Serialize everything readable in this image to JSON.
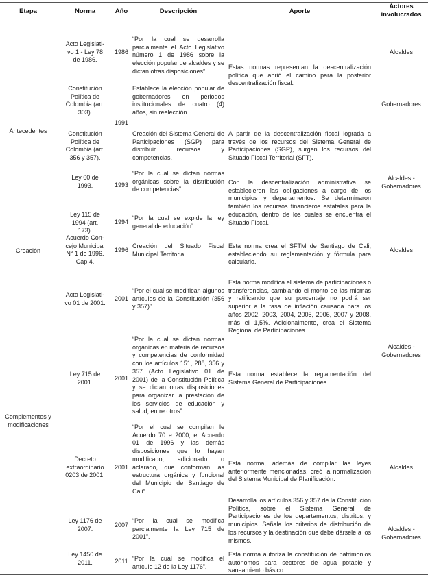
{
  "headers": [
    "Etapa",
    "Norma",
    "Año",
    "Descripción",
    "Aporte",
    "Actores\ninvolucrados"
  ],
  "etapas": [
    "Antecedentes",
    "Creación",
    "Complementos y\nmodificaciones"
  ],
  "normas": [
    {
      "norma": "Acto Legislati-\nvo 1 - Ley 78\nde 1986.",
      "descripcion": "“Por la cual se desarrolla parcialmente el Acto Legislativo número 1 de 1986 sobre la elección popular de alcaldes y se dictan otras disposiciones”."
    },
    {
      "norma": "Constitución\nPolítica de\nColombia (art.\n303).",
      "descripcion": "Establece la elección popular de gobernadores en periodos institucionales de cuatro (4) años, sin reelección."
    },
    {
      "norma": "Constitución\nPolítica de\nColombia (art.\n356 y 357).",
      "descripcion": "Creación del Sistema General de Participaciones (SGP) para distribuir recursos y competencias."
    },
    {
      "norma": "Ley 60 de\n1993.",
      "descripcion": "“Por la cual se dictan normas orgánicas sobre la distribución de competencias”."
    },
    {
      "norma": "Ley 115 de\n1994 (art.\n173).",
      "descripcion": "“Por la cual se expide la ley general de educación”."
    },
    {
      "norma": "Acuerdo Con-\ncejo Municipal\nN° 1 de 1996.\nCap 4.",
      "descripcion": "Creación del Situado Fiscal Municipal Territorial."
    },
    {
      "norma": "Acto Legislati-\nvo 01 de 2001.",
      "descripcion": "“Por el cual se modifican algunos artículos de la Constitución (356 y 357)”."
    },
    {
      "norma": "Ley 715 de\n2001.",
      "descripcion": "“Por la cual se dictan normas orgánicas en materia de recursos y competencias de conformidad con los artículos 151, 288, 356 y 357 (Acto Legislativo 01 de 2001) de la Constitución Política y se dictan otras disposiciones para organizar la prestación de los servicios de educación y salud, entre otros”."
    },
    {
      "norma": "Decreto\nextraordinario\n0203 de 2001.",
      "descripcion": "“Por el cual se compilan le Acuerdo 70 e 2000, el Acuerdo 01 de 1996 y las demás disposiciones que lo hayan modificado, adicionado o aclarado, que conforman las estructura orgánica y funcional del Municipio de Santiago de Cali”."
    },
    {
      "norma": "Ley 1176 de\n2007.",
      "descripcion": "“Por la cual se modifica parcialmente la Ley 715 de 2001”."
    },
    {
      "norma": "Ley 1450 de\n2011.",
      "descripcion": "“Por la cual se modifica el artículo 12 de la Ley 1176”."
    }
  ],
  "anios": [
    "1986",
    "1991",
    "1993",
    "1994",
    "1996",
    "2001",
    "2001",
    "2001",
    "2007",
    "2011"
  ],
  "aportes": [
    "Estas normas representan la descentralización política que abrió el camino para la posterior descentralización fiscal.",
    "A partir de la descentralización fiscal lograda a través de los recursos del Sistema General de Participaciones (SGP), surgen los recursos del Situado Fiscal Territorial (SFT).",
    "Con la descentralización administrativa se establecieron las obligaciones a cargo de los municipios y departamentos. Se determinaron también los recursos financieros estatales para la educación, dentro de los cuales se encuentra el Situado Fiscal.",
    "Esta norma crea el SFTM de Santiago de Cali, estableciendo su reglamentación y fórmula para calcularlo.",
    "Esta norma modifica el sistema de participaciones o transferencias, cambiando el monto de las mismas y ratificando que su porcentaje no podrá ser superior a la tasa de inflación causada para los años 2002, 2003, 2004, 2005, 2006, 2007 y 2008, más el 1,5%. Adicionalmente, crea el Sistema Regional de Participaciones.",
    "Esta norma establece la reglamentación del Sistema General de Participaciones.",
    "Esta norma, además de compilar las leyes anteriormente mencionadas, creó la normalización del Sistema Municipal de Planificación.",
    "Desarrolla los artículos 356 y 357 de la Constitución Política, sobre el Sistema General de Participaciones de los departamentos, distritos, y municipios. Señala los criterios de distribución de los recursos y la destinación que debe dársele a los mismos.",
    "Esta norma autoriza la constitución de patrimonios autónomos para sectores de agua potable y saneamiento básico."
  ],
  "actores": [
    "Alcaldes",
    "Gobernadores",
    "Alcaldes -\nGobernadores",
    "Alcaldes",
    "Alcaldes -\nGobernadores",
    "Alcaldes",
    "Alcaldes -\nGobernadores"
  ]
}
